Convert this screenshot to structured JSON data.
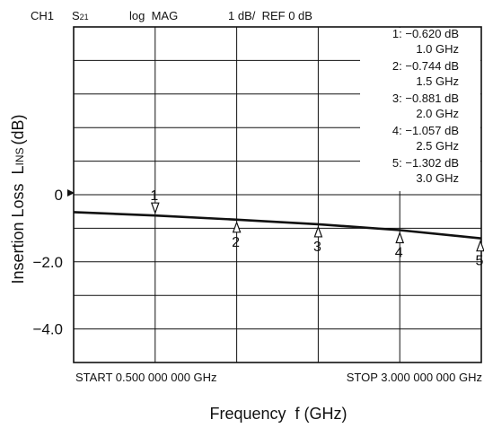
{
  "header": {
    "channel": "CH1",
    "param_main": "S",
    "param_sub": "21",
    "format": "log  MAG",
    "scale_ref": "1 dB/  REF 0 dB"
  },
  "ylabel": {
    "main": "Insertion Loss  L",
    "sub": "INS",
    "unit": "(dB)"
  },
  "xlabel": "Frequency  f (GHz)",
  "start_label": "START 0.500 000 000 GHz",
  "stop_label": "STOP 3.000 000 000 GHz",
  "y_ticks": [
    {
      "value": 0,
      "label": "0"
    },
    {
      "value": -2,
      "label": "−2.0"
    },
    {
      "value": -4,
      "label": "−4.0"
    }
  ],
  "marker_table": [
    {
      "id": "1",
      "value": "1: −0.620 dB",
      "freq": "1.0 GHz"
    },
    {
      "id": "2",
      "value": "2: −0.744 dB",
      "freq": "1.5 GHz"
    },
    {
      "id": "3",
      "value": "3: −0.881 dB",
      "freq": "2.0 GHz"
    },
    {
      "id": "4",
      "value": "4: −1.057 dB",
      "freq": "2.5 GHz"
    },
    {
      "id": "5",
      "value": "5: −1.302 dB",
      "freq": "3.0 GHz"
    }
  ],
  "chart_data": {
    "type": "line",
    "x_unit": "GHz",
    "y_unit": "dB",
    "xlim": [
      0.5,
      3.0
    ],
    "ylim": [
      -5,
      5
    ],
    "y_reference": 0,
    "grid": true,
    "series": [
      {
        "x": [
          0.5,
          1.0,
          1.5,
          2.0,
          2.5,
          3.0
        ],
        "y": [
          -0.52,
          -0.62,
          -0.744,
          -0.881,
          -1.057,
          -1.302
        ]
      }
    ],
    "markers": [
      {
        "label": "1",
        "x": 1.0,
        "y": -0.62
      },
      {
        "label": "2",
        "x": 1.5,
        "y": -0.744
      },
      {
        "label": "3",
        "x": 2.0,
        "y": -0.881
      },
      {
        "label": "4",
        "x": 2.5,
        "y": -1.057
      },
      {
        "label": "5",
        "x": 3.0,
        "y": -1.302
      }
    ]
  }
}
